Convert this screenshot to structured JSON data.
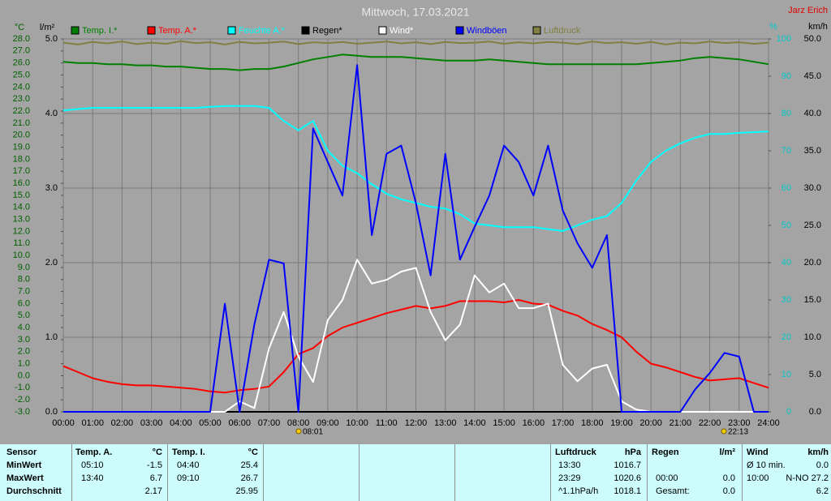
{
  "chart_data": {
    "type": "line",
    "title": "Mittwoch, 17.03.2021",
    "author": "Jarz Erich",
    "y_unit": "°C",
    "y2_unit": "km/h",
    "y3_unit": "l/m²",
    "y4_unit": "%",
    "annotations": [
      "08:01",
      "22:13"
    ],
    "xlim": [
      0,
      24
    ],
    "xticks": [
      {
        "value": 0,
        "label": "00:00"
      },
      {
        "value": 1,
        "label": "01:00"
      },
      {
        "value": 2,
        "label": "02:00"
      },
      {
        "value": 3,
        "label": "03:00"
      },
      {
        "value": 4,
        "label": "04:00"
      },
      {
        "value": 5,
        "label": "05:00"
      },
      {
        "value": 6,
        "label": "06:00"
      },
      {
        "value": 7,
        "label": "07:00"
      },
      {
        "value": 8,
        "label": "08:00"
      },
      {
        "value": 9,
        "label": "09:00"
      },
      {
        "value": 10,
        "label": "10:00"
      },
      {
        "value": 11,
        "label": "11:00"
      },
      {
        "value": 12,
        "label": "12:00"
      },
      {
        "value": 13,
        "label": "13:00"
      },
      {
        "value": 14,
        "label": "14:00"
      },
      {
        "value": 15,
        "label": "15:00"
      },
      {
        "value": 16,
        "label": "16:00"
      },
      {
        "value": 17,
        "label": "17:00"
      },
      {
        "value": 18,
        "label": "18:00"
      },
      {
        "value": 19,
        "label": "19:00"
      },
      {
        "value": 20,
        "label": "20:00"
      },
      {
        "value": 21,
        "label": "21:00"
      },
      {
        "value": 22,
        "label": "22:00"
      },
      {
        "value": 23,
        "label": "23:00"
      },
      {
        "value": 24,
        "label": "24:00"
      }
    ],
    "ylim": [
      -3,
      28
    ],
    "yticks": [
      {
        "value": 28,
        "label": "28.0"
      },
      {
        "value": 27,
        "label": "27.0"
      },
      {
        "value": 26,
        "label": "26.0"
      },
      {
        "value": 25,
        "label": "25.0"
      },
      {
        "value": 24,
        "label": "24.0"
      },
      {
        "value": 23,
        "label": "23.0"
      },
      {
        "value": 22,
        "label": "22.0"
      },
      {
        "value": 21,
        "label": "21.0"
      },
      {
        "value": 20,
        "label": "20.0"
      },
      {
        "value": 19,
        "label": "19.0"
      },
      {
        "value": 18,
        "label": "18.0"
      },
      {
        "value": 17,
        "label": "17.0"
      },
      {
        "value": 16,
        "label": "16.0"
      },
      {
        "value": 15,
        "label": "15.0"
      },
      {
        "value": 14,
        "label": "14.0"
      },
      {
        "value": 13,
        "label": "13.0"
      },
      {
        "value": 12,
        "label": "12.0"
      },
      {
        "value": 11,
        "label": "11.0"
      },
      {
        "value": 10,
        "label": "10.0"
      },
      {
        "value": 9,
        "label": "9.0"
      },
      {
        "value": 8,
        "label": "8.0"
      },
      {
        "value": 7,
        "label": "7.0"
      },
      {
        "value": 6,
        "label": "6.0"
      },
      {
        "value": 5,
        "label": "5.0"
      },
      {
        "value": 4,
        "label": "4.0"
      },
      {
        "value": 3,
        "label": "3.0"
      },
      {
        "value": 2,
        "label": "2.0"
      },
      {
        "value": 1,
        "label": "1.0"
      },
      {
        "value": 0,
        "label": "0.0"
      },
      {
        "value": -1,
        "label": "-1.0"
      },
      {
        "value": -2,
        "label": "-2.0"
      },
      {
        "value": -3,
        "label": "-3.0"
      }
    ],
    "y2lim": [
      0,
      50
    ],
    "y2ticks": [
      {
        "value": 50,
        "label": "50.0"
      },
      {
        "value": 45,
        "label": "45.0"
      },
      {
        "value": 40,
        "label": "40.0"
      },
      {
        "value": 35,
        "label": "35.0"
      },
      {
        "value": 30,
        "label": "30.0"
      },
      {
        "value": 25,
        "label": "25.0"
      },
      {
        "value": 20,
        "label": "20.0"
      },
      {
        "value": 15,
        "label": "15.0"
      },
      {
        "value": 10,
        "label": "10.0"
      },
      {
        "value": 5,
        "label": "5.0"
      },
      {
        "value": 0,
        "label": "0.0"
      }
    ],
    "y3lim": [
      0,
      5
    ],
    "y3ticks": [
      {
        "value": 5,
        "label": "5.0"
      },
      {
        "value": 4,
        "label": "4.0"
      },
      {
        "value": 3,
        "label": "3.0"
      },
      {
        "value": 2,
        "label": "2.0"
      },
      {
        "value": 1,
        "label": "1.0"
      },
      {
        "value": 0,
        "label": "0.0"
      }
    ],
    "y4lim": [
      0,
      100
    ],
    "y4ticks": [
      100,
      90,
      80,
      70,
      60,
      50,
      40,
      30,
      20,
      10,
      0
    ],
    "grid": true,
    "x": [
      0,
      0.5,
      1,
      1.5,
      2,
      2.5,
      3,
      3.5,
      4,
      4.5,
      5,
      5.5,
      6,
      6.5,
      7,
      7.5,
      8,
      8.5,
      9,
      9.5,
      10,
      10.5,
      11,
      11.5,
      12,
      12.5,
      13,
      13.5,
      14,
      14.5,
      15,
      15.5,
      16,
      16.5,
      17,
      17.5,
      18,
      18.5,
      19,
      19.5,
      20,
      20.5,
      21,
      21.5,
      22,
      22.5,
      23,
      23.5,
      24
    ],
    "series": [
      {
        "name": "Temp. I.*",
        "color": "#008000",
        "axis": "y",
        "values": [
          26.1,
          26.0,
          26.0,
          25.9,
          25.9,
          25.8,
          25.8,
          25.7,
          25.7,
          25.6,
          25.5,
          25.5,
          25.4,
          25.5,
          25.5,
          25.7,
          26.0,
          26.3,
          26.5,
          26.7,
          26.6,
          26.5,
          26.5,
          26.5,
          26.4,
          26.3,
          26.2,
          26.2,
          26.2,
          26.3,
          26.2,
          26.1,
          26.0,
          25.9,
          25.9,
          25.9,
          25.9,
          25.9,
          25.9,
          25.9,
          26.0,
          26.1,
          26.2,
          26.4,
          26.5,
          26.4,
          26.3,
          26.1,
          25.9
        ]
      },
      {
        "name": "Temp. A.*",
        "color": "#ff0000",
        "axis": "y",
        "values": [
          0.8,
          0.3,
          -0.2,
          -0.5,
          -0.7,
          -0.8,
          -0.8,
          -0.9,
          -1.0,
          -1.1,
          -1.3,
          -1.4,
          -1.2,
          -1.1,
          -0.9,
          0.3,
          1.8,
          2.3,
          3.3,
          4.0,
          4.4,
          4.8,
          5.2,
          5.5,
          5.8,
          5.6,
          5.8,
          6.2,
          6.2,
          6.2,
          6.1,
          6.3,
          6.0,
          5.9,
          5.4,
          5.0,
          4.3,
          3.8,
          3.2,
          2.0,
          1.0,
          0.7,
          0.3,
          -0.1,
          -0.4,
          -0.3,
          -0.2,
          -0.6,
          -1.0
        ]
      },
      {
        "name": "Feuchte A.*",
        "color": "#00ffff",
        "axis": "y4",
        "values": [
          80.8,
          81.2,
          81.5,
          81.5,
          81.5,
          81.5,
          81.5,
          81.5,
          81.5,
          81.5,
          81.8,
          82,
          82,
          82,
          81.5,
          78,
          75.5,
          78,
          70,
          66,
          64,
          61,
          58.5,
          57,
          56,
          55,
          54.5,
          53,
          50.5,
          50,
          49.5,
          49.5,
          49.5,
          49,
          48.5,
          50,
          51.5,
          52.5,
          56,
          62,
          67,
          70,
          72,
          73.5,
          74.5,
          74.5,
          74.8,
          75,
          75.2
        ]
      },
      {
        "name": "Regen*",
        "color": "#000000",
        "axis": "y3",
        "values": [
          0,
          0,
          0,
          0,
          0,
          0,
          0,
          0,
          0,
          0,
          0,
          0,
          0,
          0,
          0,
          0,
          0,
          0,
          0,
          0,
          0,
          0,
          0,
          0,
          0,
          0,
          0,
          0,
          0,
          0,
          0,
          0,
          0,
          0,
          0,
          0,
          0,
          0,
          0,
          0,
          0,
          0,
          0,
          0,
          0,
          0,
          0,
          0,
          0
        ]
      },
      {
        "name": "Wind*",
        "color": "#ffffff",
        "axis": "y2",
        "values": [
          0,
          0,
          0,
          0,
          0,
          0,
          0,
          0,
          0,
          0,
          0,
          0,
          1.4,
          0.5,
          8.5,
          13.4,
          7.4,
          4,
          12.3,
          15,
          20.4,
          17.2,
          17.7,
          18.8,
          19.3,
          13.4,
          9.6,
          11.7,
          18.3,
          16,
          17.2,
          13.9,
          13.9,
          14.5,
          6.3,
          4.1,
          5.8,
          6.3,
          1.4,
          0.3,
          0,
          0,
          0,
          0,
          0,
          0,
          0,
          0,
          0
        ]
      },
      {
        "name": "Windböen",
        "color": "#0000ff",
        "axis": "y2",
        "values": [
          0,
          0,
          0,
          0,
          0,
          0,
          0,
          0,
          0,
          0,
          0,
          14.5,
          0,
          11.7,
          20.4,
          19.9,
          0,
          38,
          33.5,
          29,
          46.5,
          23.7,
          34.6,
          35.7,
          28,
          18.3,
          34.6,
          20.4,
          24.8,
          29,
          35.7,
          33.5,
          29,
          35.7,
          27,
          22.6,
          19.3,
          23.7,
          0,
          0,
          0,
          0,
          0,
          3,
          5.2,
          7.9,
          7.4,
          0,
          0
        ]
      },
      {
        "name": "Luftdruck",
        "color": "#808040",
        "axis": "y4",
        "values": [
          99,
          98.5,
          99.2,
          98.8,
          99.3,
          98.6,
          99,
          98.7,
          99.4,
          98.9,
          99.1,
          98.5,
          99.2,
          98.8,
          99,
          99.3,
          98.6,
          99.1,
          98.9,
          99.2,
          98.7,
          99,
          99.3,
          98.8,
          99.1,
          98.6,
          99.2,
          98.9,
          99,
          99.3,
          98.7,
          99.1,
          98.8,
          99.2,
          99,
          98.6,
          99.3,
          98.9,
          99.1,
          98.7,
          99.2,
          98.5,
          99,
          98.8,
          99.3,
          98.9,
          99.1,
          98.7,
          99
        ]
      }
    ]
  },
  "table": {
    "header": [
      "Sensor",
      "Temp. A.",
      "°C",
      "Temp. I.",
      "°C",
      "Luftdruck",
      "hPa",
      "Regen",
      "l/m²",
      "Wind",
      "km/h"
    ],
    "rows": [
      [
        "MinWert",
        "05:10",
        "-1.5",
        "04:40",
        "25.4",
        "13:30",
        "1016.7",
        null,
        null,
        "Ø 10 min.",
        "0.0"
      ],
      [
        "MaxWert",
        "13:40",
        "6.7",
        "09:10",
        "26.7",
        "23:29",
        "1020.6",
        "00:00",
        "0.0",
        "10:00",
        "N-NO 27.2"
      ],
      [
        "Durchschnitt",
        null,
        "2.17",
        null,
        "25.95",
        "^1.1hPa/h",
        "1018.1",
        "Gesamt:",
        "0.0",
        null,
        "6.2"
      ]
    ]
  }
}
